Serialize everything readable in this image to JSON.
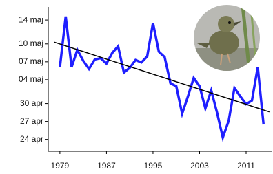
{
  "chart_data": {
    "type": "line",
    "x": [
      1979,
      1980,
      1981,
      1982,
      1983,
      1984,
      1985,
      1986,
      1987,
      1988,
      1989,
      1990,
      1991,
      1992,
      1993,
      1994,
      1995,
      1996,
      1997,
      1998,
      1999,
      2000,
      2001,
      2002,
      2003,
      2004,
      2005,
      2006,
      2007,
      2008,
      2009,
      2010,
      2011,
      2012,
      2013,
      2014
    ],
    "values": [
      126.1,
      134.6,
      126.1,
      129.0,
      127.2,
      125.8,
      127.4,
      127.6,
      126.7,
      128.5,
      129.6,
      125.2,
      126.0,
      127.3,
      126.9,
      127.9,
      133.5,
      128.7,
      127.8,
      123.4,
      122.9,
      118.3,
      121.2,
      124.3,
      122.9,
      119.2,
      122.2,
      118.5,
      114.3,
      117.1,
      122.6,
      121.2,
      119.9,
      120.5,
      126.1,
      116.5
    ],
    "color": "#1f1fff",
    "trend": {
      "x": [
        1978,
        2015
      ],
      "values": [
        130.3,
        118.6
      ],
      "color": "#000000"
    },
    "xlim": [
      1977,
      2015.5
    ],
    "xticks": [
      1979,
      1987,
      1995,
      2003,
      2011
    ],
    "ylim": [
      112,
      136.2
    ],
    "yticks": [
      {
        "value": 114,
        "label": "24 apr"
      },
      {
        "value": 117,
        "label": "27 apr"
      },
      {
        "value": 120,
        "label": "30 apr"
      },
      {
        "value": 124,
        "label": "04 maj"
      },
      {
        "value": 127,
        "label": "07 maj"
      },
      {
        "value": 130,
        "label": "10 maj"
      },
      {
        "value": 134,
        "label": "14 maj"
      }
    ]
  }
}
